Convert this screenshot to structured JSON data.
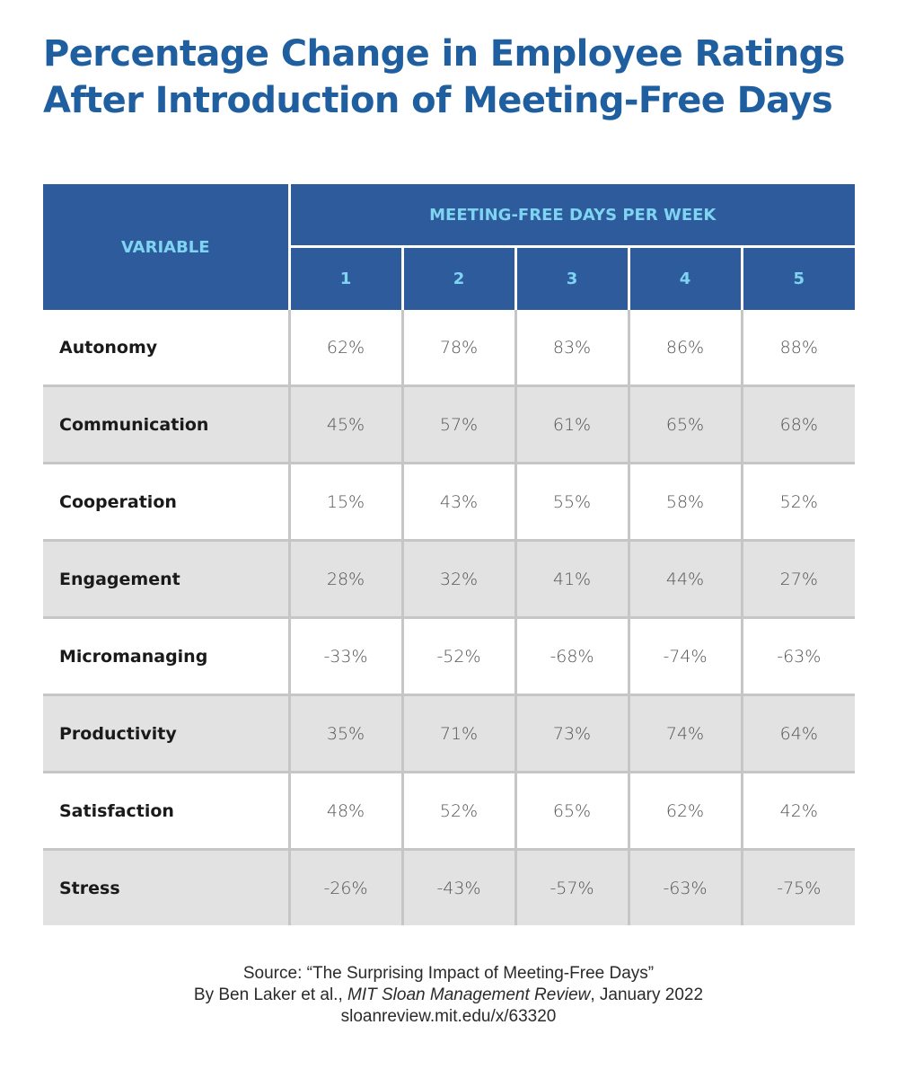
{
  "title": {
    "line1": "Percentage Change in Employee Ratings",
    "line2": "After Introduction of Meeting-Free Days"
  },
  "colors": {
    "title": "#1f5fa0",
    "header_bg": "#2e5b9b",
    "header_text": "#7fd4f2",
    "row_alt": "#e2e2e2",
    "grid": "#c6c6c6"
  },
  "chart_data": {
    "type": "table",
    "title": "Percentage Change in Employee Ratings After Introduction of Meeting-Free Days",
    "row_header_label": "VARIABLE",
    "column_group_label": "MEETING-FREE DAYS PER WEEK",
    "columns": [
      "1",
      "2",
      "3",
      "4",
      "5"
    ],
    "rows": [
      {
        "label": "Autonomy",
        "values": [
          "62%",
          "78%",
          "83%",
          "86%",
          "88%"
        ]
      },
      {
        "label": "Communication",
        "values": [
          "45%",
          "57%",
          "61%",
          "65%",
          "68%"
        ]
      },
      {
        "label": "Cooperation",
        "values": [
          "15%",
          "43%",
          "55%",
          "58%",
          "52%"
        ]
      },
      {
        "label": "Engagement",
        "values": [
          "28%",
          "32%",
          "41%",
          "44%",
          "27%"
        ]
      },
      {
        "label": "Micromanaging",
        "values": [
          "-33%",
          "-52%",
          "-68%",
          "-74%",
          "-63%"
        ]
      },
      {
        "label": "Productivity",
        "values": [
          "35%",
          "71%",
          "73%",
          "74%",
          "64%"
        ]
      },
      {
        "label": "Satisfaction",
        "values": [
          "48%",
          "52%",
          "65%",
          "62%",
          "42%"
        ]
      },
      {
        "label": "Stress",
        "values": [
          "-26%",
          "-43%",
          "-57%",
          "-63%",
          "-75%"
        ]
      }
    ]
  },
  "source": {
    "line1": "Source: “The Surprising Impact of Meeting-Free Days”",
    "line2_prefix": "By Ben Laker et al., ",
    "line2_journal": "MIT Sloan Management Review",
    "line2_suffix": ", January 2022",
    "line3": "sloanreview.mit.edu/x/63320"
  }
}
